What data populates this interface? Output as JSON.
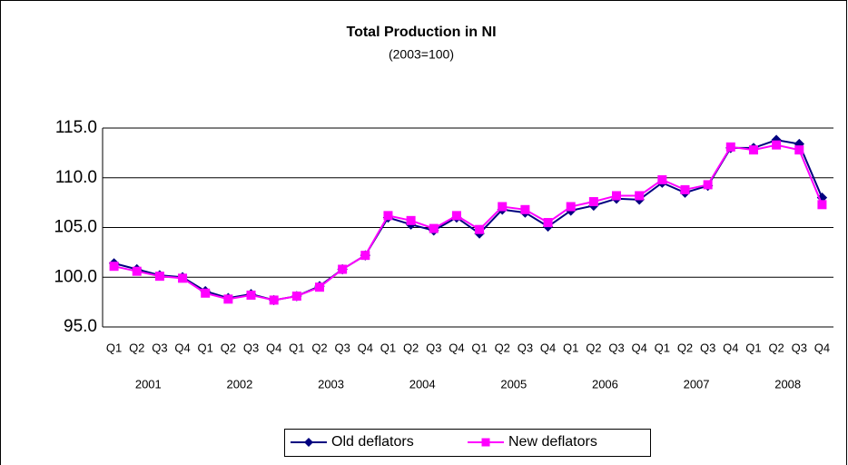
{
  "chart_data": {
    "type": "line",
    "title": "Total Production in NI",
    "subtitle": "(2003=100)",
    "categories": [
      "Q1",
      "Q2",
      "Q3",
      "Q4",
      "Q1",
      "Q2",
      "Q3",
      "Q4",
      "Q1",
      "Q2",
      "Q3",
      "Q4",
      "Q1",
      "Q2",
      "Q3",
      "Q4",
      "Q1",
      "Q2",
      "Q3",
      "Q4",
      "Q1",
      "Q2",
      "Q3",
      "Q4",
      "Q1",
      "Q2",
      "Q3",
      "Q4",
      "Q1",
      "Q2",
      "Q3",
      "Q4"
    ],
    "years": [
      "2001",
      "2002",
      "2003",
      "2004",
      "2005",
      "2006",
      "2007",
      "2008"
    ],
    "series": [
      {
        "name": "Old deflators",
        "color": "#000080",
        "marker": "diamond",
        "values": [
          101.4,
          100.8,
          100.2,
          100.0,
          98.6,
          97.9,
          98.3,
          97.7,
          98.1,
          99.1,
          100.8,
          102.2,
          106.0,
          105.3,
          104.7,
          106.0,
          104.4,
          106.8,
          106.5,
          105.1,
          106.7,
          107.2,
          107.9,
          107.8,
          109.5,
          108.5,
          109.2,
          113.0,
          113.0,
          113.8,
          113.4,
          108.0
        ]
      },
      {
        "name": "New deflators",
        "color": "#ff00ff",
        "marker": "square",
        "values": [
          101.1,
          100.6,
          100.1,
          99.9,
          98.4,
          97.8,
          98.2,
          97.7,
          98.1,
          99.0,
          100.8,
          102.2,
          106.2,
          105.7,
          104.9,
          106.2,
          104.8,
          107.1,
          106.8,
          105.5,
          107.1,
          107.6,
          108.2,
          108.2,
          109.8,
          108.8,
          109.3,
          113.1,
          112.8,
          113.3,
          112.8,
          107.3
        ]
      }
    ],
    "ylim": [
      95,
      115
    ],
    "yticks": [
      {
        "value": 95,
        "label": "95.0"
      },
      {
        "value": 100,
        "label": "100.0"
      },
      {
        "value": 105,
        "label": "105.0"
      },
      {
        "value": 110,
        "label": "110.0"
      },
      {
        "value": 115,
        "label": "115.0"
      }
    ],
    "grid": true,
    "legend": "bottom"
  }
}
